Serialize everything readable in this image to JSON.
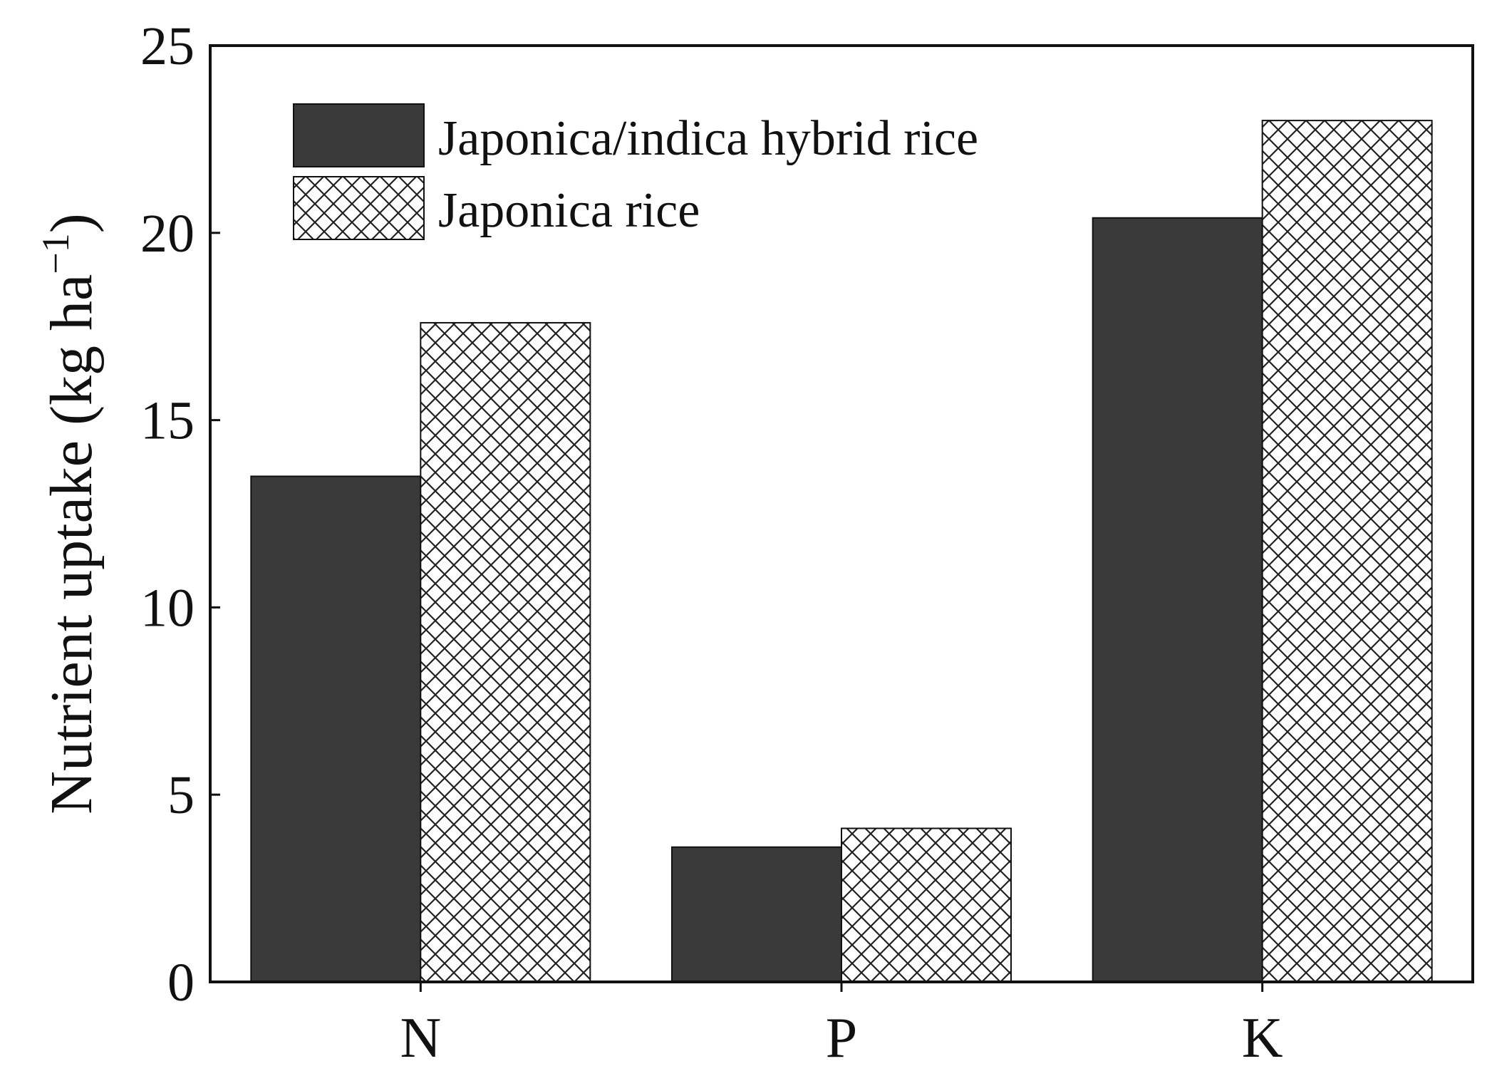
{
  "chart_data": {
    "type": "bar",
    "categories": [
      "N",
      "P",
      "K"
    ],
    "series": [
      {
        "name": "Japonica/indica hybrid rice",
        "values": [
          13.5,
          3.6,
          20.4
        ],
        "fill": "solid",
        "color": "#3a3a3a"
      },
      {
        "name": "Japonica rice",
        "values": [
          17.6,
          4.1,
          23.0
        ],
        "fill": "crosshatch",
        "color": "#ffffff"
      }
    ],
    "title": "",
    "xlabel": "",
    "ylabel": "Nutrient uptake (kg ha",
    "ylabel_superscript": "−1",
    "ylabel_close": ")",
    "ylim": [
      0,
      25
    ],
    "yticks": [
      "0",
      "5",
      "10",
      "15",
      "20",
      "25"
    ],
    "grid": false,
    "legend_position": "top-left"
  }
}
